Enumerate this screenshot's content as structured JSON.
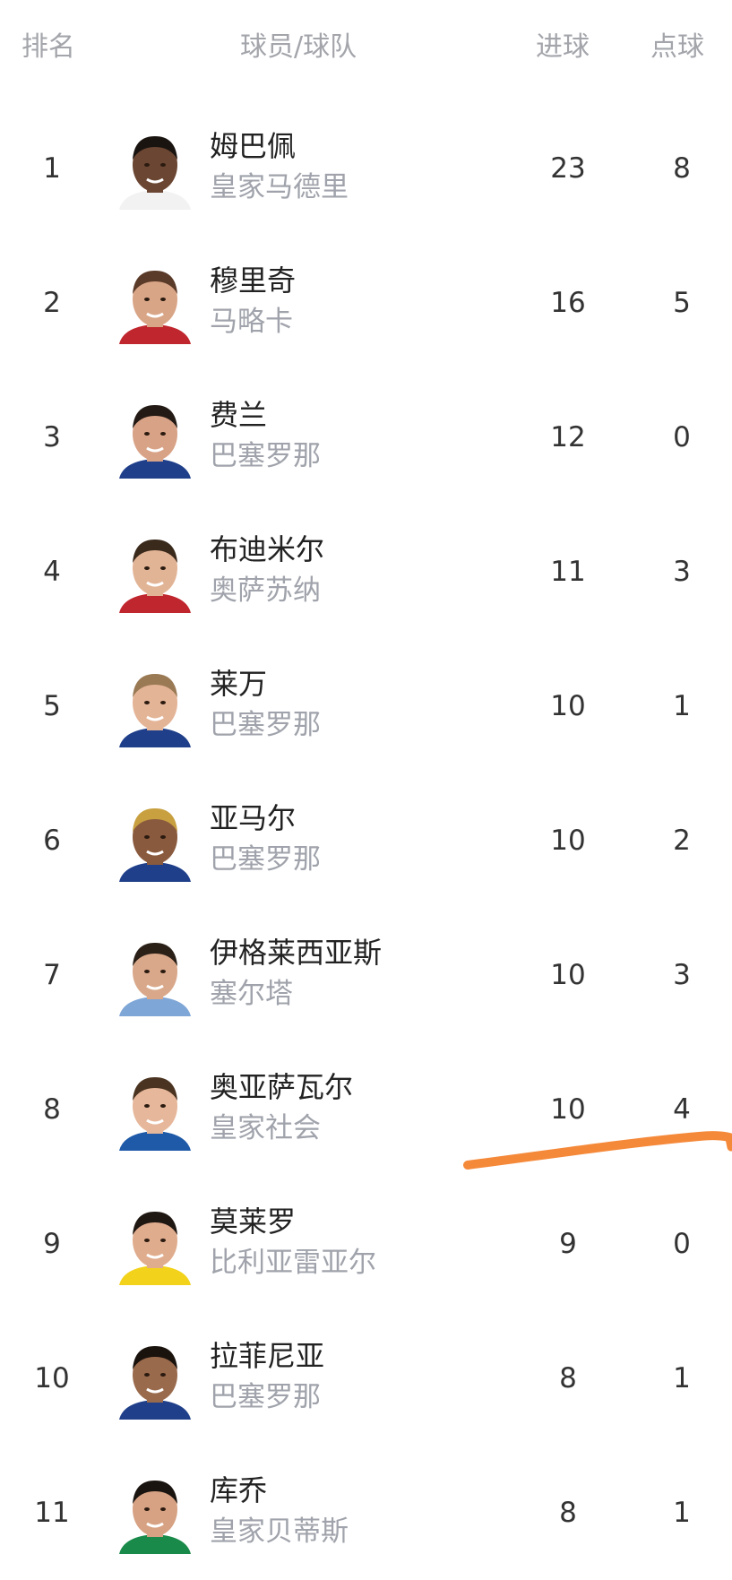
{
  "header": {
    "rank": "排名",
    "player_team": "球员/球队",
    "goals": "进球",
    "penalties": "点球"
  },
  "rows": [
    {
      "rank": "1",
      "name": "姆巴佩",
      "team": "皇家马德里",
      "goals": "23",
      "penalties": "8",
      "skin": "#6b4632",
      "hair": "#1a1410",
      "shirt": "#f2f2f2"
    },
    {
      "rank": "2",
      "name": "穆里奇",
      "team": "马略卡",
      "goals": "16",
      "penalties": "5",
      "skin": "#d9a587",
      "hair": "#5a3a28",
      "shirt": "#c0262d"
    },
    {
      "rank": "3",
      "name": "费兰",
      "team": "巴塞罗那",
      "goals": "12",
      "penalties": "0",
      "skin": "#d8a286",
      "hair": "#231a15",
      "shirt": "#1f3f8a"
    },
    {
      "rank": "4",
      "name": "布迪米尔",
      "team": "奥萨苏纳",
      "goals": "11",
      "penalties": "3",
      "skin": "#e2b496",
      "hair": "#3a2a1c",
      "shirt": "#c0262d"
    },
    {
      "rank": "5",
      "name": "莱万",
      "team": "巴塞罗那",
      "goals": "10",
      "penalties": "1",
      "skin": "#e4b497",
      "hair": "#9a7a55",
      "shirt": "#1f3f8a"
    },
    {
      "rank": "6",
      "name": "亚马尔",
      "team": "巴塞罗那",
      "goals": "10",
      "penalties": "2",
      "skin": "#8a5a3e",
      "hair": "#c8a040",
      "shirt": "#1f3f8a"
    },
    {
      "rank": "7",
      "name": "伊格莱西亚斯",
      "team": "塞尔塔",
      "goals": "10",
      "penalties": "3",
      "skin": "#d9a88a",
      "hair": "#2a2018",
      "shirt": "#7ea6d6"
    },
    {
      "rank": "8",
      "name": "奥亚萨瓦尔",
      "team": "皇家社会",
      "goals": "10",
      "penalties": "4",
      "skin": "#e6b79a",
      "hair": "#4a3320",
      "shirt": "#1e5aa8"
    },
    {
      "rank": "9",
      "name": "莫莱罗",
      "team": "比利亚雷亚尔",
      "goals": "9",
      "penalties": "0",
      "skin": "#e0ac8e",
      "hair": "#1f1712",
      "shirt": "#f2d21a"
    },
    {
      "rank": "10",
      "name": "拉菲尼亚",
      "team": "巴塞罗那",
      "goals": "8",
      "penalties": "1",
      "skin": "#9a6a4c",
      "hair": "#1a120d",
      "shirt": "#1f3f8a"
    },
    {
      "rank": "11",
      "name": "库乔",
      "team": "皇家贝蒂斯",
      "goals": "8",
      "penalties": "1",
      "skin": "#d7a283",
      "hair": "#1a1410",
      "shirt": "#1a8a4a"
    }
  ],
  "annotation_color": "#f5893a"
}
